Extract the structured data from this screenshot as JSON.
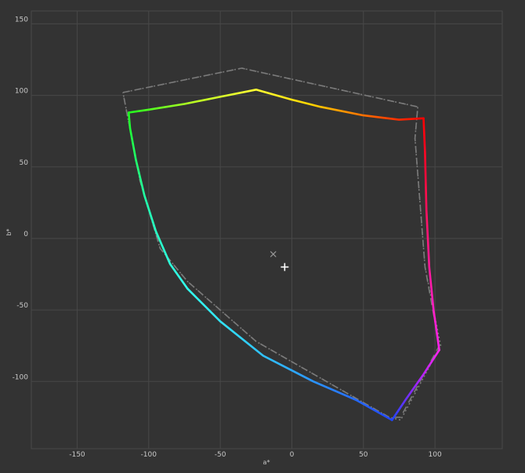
{
  "chart_data": {
    "type": "line",
    "title": "",
    "xlabel": "a*",
    "ylabel": "b*",
    "xlim": [
      -182,
      147
    ],
    "ylim": [
      -147,
      159
    ],
    "x_ticks": [
      -150,
      -100,
      -50,
      0,
      50,
      100
    ],
    "y_ticks": [
      150,
      100,
      50,
      0,
      -50,
      -100
    ],
    "grid": true,
    "colors": {
      "background": "#333333",
      "grid": "#484848",
      "reference": "#7a7a7a",
      "marker": "#ffffff"
    },
    "gamut": {
      "edges": [
        {
          "from": "red",
          "to": "yellow",
          "colors": [
            "#ff0000",
            "#ff6a00",
            "#ffd400",
            "#ffff33"
          ],
          "points": [
            [
              92,
              84
            ],
            [
              75,
              83
            ],
            [
              50,
              86
            ],
            [
              20,
              92
            ],
            [
              0,
              97
            ],
            [
              -25,
              104
            ]
          ]
        },
        {
          "from": "yellow",
          "to": "green",
          "colors": [
            "#ffff33",
            "#b8ff22",
            "#1fff1f"
          ],
          "points": [
            [
              -25,
              104
            ],
            [
              -50,
              99
            ],
            [
              -75,
              94
            ],
            [
              -100,
              90
            ],
            [
              -114,
              88
            ]
          ]
        },
        {
          "from": "green",
          "to": "cyan",
          "colors": [
            "#1fff1f",
            "#22ffb0",
            "#33ffee"
          ],
          "points": [
            [
              -114,
              88
            ],
            [
              -113,
              77
            ],
            [
              -109,
              55
            ],
            [
              -103,
              30
            ],
            [
              -95,
              5
            ],
            [
              -85,
              -18
            ],
            [
              -73,
              -35
            ]
          ]
        },
        {
          "from": "cyan",
          "to": "blue",
          "colors": [
            "#33ffee",
            "#2fb4ff",
            "#2145ff"
          ],
          "points": [
            [
              -73,
              -35
            ],
            [
              -50,
              -58
            ],
            [
              -20,
              -82
            ],
            [
              15,
              -100
            ],
            [
              45,
              -113
            ],
            [
              70,
              -127
            ]
          ]
        },
        {
          "from": "blue",
          "to": "magenta",
          "colors": [
            "#2145ff",
            "#9a24ff",
            "#ff22ee"
          ],
          "points": [
            [
              70,
              -127
            ],
            [
              80,
              -112
            ],
            [
              92,
              -95
            ],
            [
              103,
              -78
            ]
          ]
        },
        {
          "from": "magenta",
          "to": "red",
          "colors": [
            "#ff22ee",
            "#ff1577",
            "#ff0000"
          ],
          "points": [
            [
              103,
              -78
            ],
            [
              99,
              -50
            ],
            [
              96,
              -20
            ],
            [
              94,
              20
            ],
            [
              93,
              60
            ],
            [
              92,
              84
            ]
          ]
        }
      ],
      "reference_dashed": [
        [
          -118,
          102
        ],
        [
          -35,
          119
        ],
        [
          88,
          92
        ],
        [
          86,
          70
        ],
        [
          93,
          -20
        ],
        [
          103,
          -75
        ],
        [
          76,
          -125
        ],
        [
          68,
          -125
        ],
        [
          -25,
          -72
        ],
        [
          -73,
          -30
        ],
        [
          -92,
          -7
        ],
        [
          -106,
          40
        ],
        [
          -118,
          102
        ]
      ],
      "reference_dotted": [
        [
          -118,
          102
        ],
        [
          -35,
          119
        ],
        [
          88,
          92
        ],
        [
          86,
          70
        ],
        [
          93,
          -20
        ],
        [
          104,
          -75
        ],
        [
          76,
          -127
        ],
        [
          68,
          -125
        ],
        [
          -25,
          -72
        ],
        [
          -73,
          -30
        ],
        [
          -92,
          -7
        ],
        [
          -106,
          40
        ],
        [
          -118,
          102
        ]
      ],
      "white_point_x": [
        -13,
        -11
      ],
      "white_point_plus": [
        -5,
        -20
      ]
    }
  }
}
